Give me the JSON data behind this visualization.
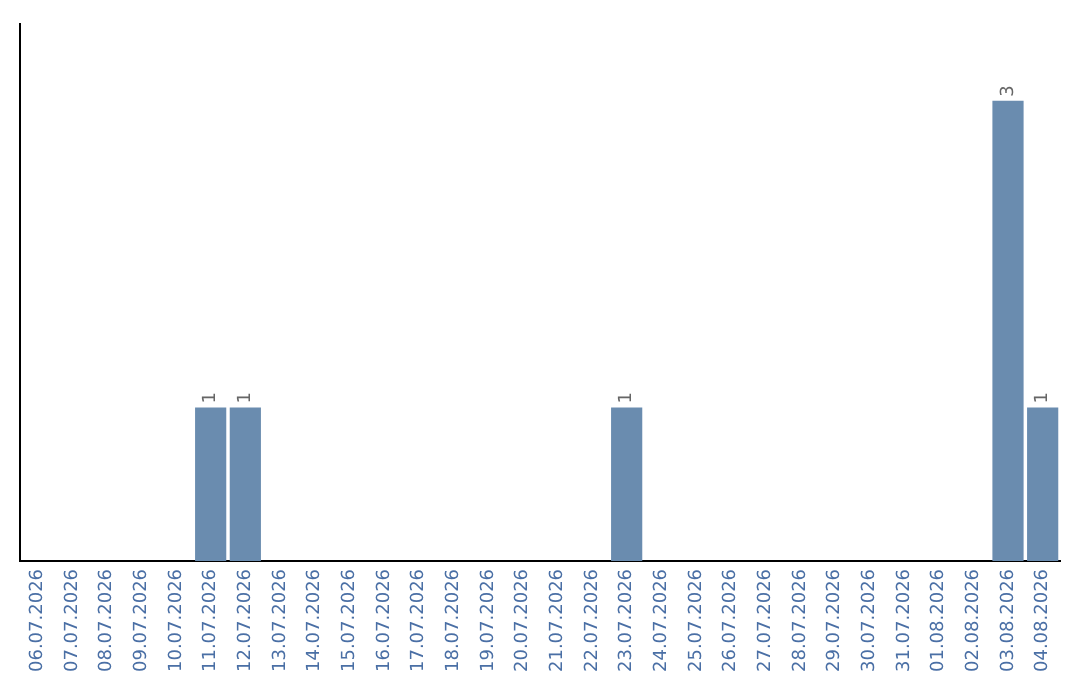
{
  "chart_data": {
    "type": "bar",
    "categories": [
      "06.07.2026",
      "07.07.2026",
      "08.07.2026",
      "09.07.2026",
      "10.07.2026",
      "11.07.2026",
      "12.07.2026",
      "13.07.2026",
      "14.07.2026",
      "15.07.2026",
      "16.07.2026",
      "17.07.2026",
      "18.07.2026",
      "19.07.2026",
      "20.07.2026",
      "21.07.2026",
      "22.07.2026",
      "23.07.2026",
      "24.07.2026",
      "25.07.2026",
      "26.07.2026",
      "27.07.2026",
      "28.07.2026",
      "29.07.2026",
      "30.07.2026",
      "31.07.2026",
      "01.08.2026",
      "02.08.2026",
      "03.08.2026",
      "04.08.2026"
    ],
    "values": [
      0,
      0,
      0,
      0,
      0,
      1,
      1,
      0,
      0,
      0,
      0,
      0,
      0,
      0,
      0,
      0,
      0,
      1,
      0,
      0,
      0,
      0,
      0,
      0,
      0,
      0,
      0,
      0,
      3,
      1
    ],
    "value_labels": [
      null,
      null,
      null,
      null,
      null,
      "1",
      "1",
      null,
      null,
      null,
      null,
      null,
      null,
      null,
      null,
      null,
      null,
      "1",
      null,
      null,
      null,
      null,
      null,
      null,
      null,
      null,
      null,
      null,
      "3",
      "1"
    ],
    "color": "#6a8caf",
    "grid": false,
    "legend": false
  }
}
